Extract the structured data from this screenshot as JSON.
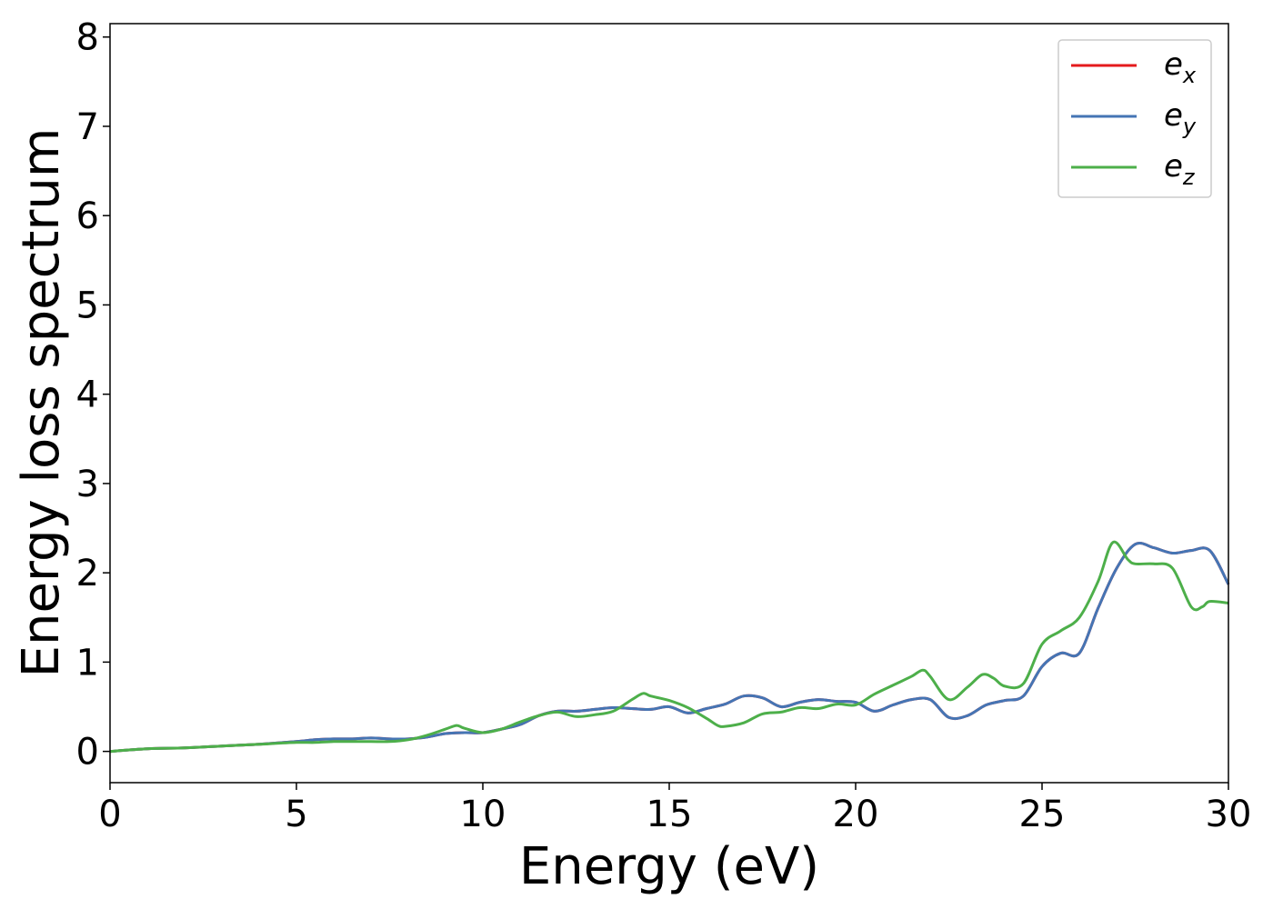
{
  "chart_data": {
    "type": "line",
    "xlabel": "Energy (eV)",
    "ylabel": "Energy loss spectrum",
    "xlim": [
      0,
      30
    ],
    "ylim": [
      -0.35,
      8.15
    ],
    "xticks": [
      "0",
      "5",
      "10",
      "15",
      "20",
      "25",
      "30"
    ],
    "yticks": [
      "0",
      "1",
      "2",
      "3",
      "4",
      "5",
      "6",
      "7",
      "8"
    ],
    "grid": false,
    "legend_position": "top-right",
    "series": [
      {
        "name": "e_x",
        "label_main": "e",
        "label_sub": "x",
        "color": "#e41a1c",
        "x": [
          0,
          1,
          2,
          3,
          4,
          5,
          5.5,
          6,
          6.5,
          7,
          7.5,
          8,
          8.5,
          9,
          9.5,
          10,
          10.5,
          11,
          11.5,
          12,
          12.5,
          13,
          13.5,
          14,
          14.5,
          15,
          15.5,
          16,
          16.5,
          17,
          17.5,
          18,
          18.5,
          19,
          19.5,
          20,
          20.5,
          21,
          21.5,
          22,
          22.5,
          23,
          23.5,
          24,
          24.5,
          25,
          25.5,
          26,
          26.5,
          27,
          27.5,
          28,
          28.5,
          29,
          29.5,
          30
        ],
        "y": [
          0,
          0.03,
          0.04,
          0.06,
          0.08,
          0.11,
          0.13,
          0.14,
          0.14,
          0.15,
          0.14,
          0.14,
          0.16,
          0.2,
          0.21,
          0.21,
          0.25,
          0.3,
          0.4,
          0.45,
          0.45,
          0.47,
          0.49,
          0.48,
          0.47,
          0.5,
          0.43,
          0.48,
          0.53,
          0.62,
          0.6,
          0.5,
          0.55,
          0.58,
          0.56,
          0.55,
          0.45,
          0.52,
          0.58,
          0.58,
          0.38,
          0.4,
          0.52,
          0.57,
          0.62,
          0.95,
          1.1,
          1.1,
          1.6,
          2.05,
          2.32,
          2.28,
          2.22,
          2.25,
          2.25,
          1.87
        ]
      },
      {
        "name": "e_y",
        "label_main": "e",
        "label_sub": "y",
        "color": "#4575b4",
        "x": [
          0,
          1,
          2,
          3,
          4,
          5,
          5.5,
          6,
          6.5,
          7,
          7.5,
          8,
          8.5,
          9,
          9.5,
          10,
          10.5,
          11,
          11.5,
          12,
          12.5,
          13,
          13.5,
          14,
          14.5,
          15,
          15.5,
          16,
          16.5,
          17,
          17.5,
          18,
          18.5,
          19,
          19.5,
          20,
          20.5,
          21,
          21.5,
          22,
          22.5,
          23,
          23.5,
          24,
          24.5,
          25,
          25.5,
          26,
          26.5,
          27,
          27.5,
          28,
          28.5,
          29,
          29.5,
          30
        ],
        "y": [
          0,
          0.03,
          0.04,
          0.06,
          0.08,
          0.11,
          0.13,
          0.14,
          0.14,
          0.15,
          0.14,
          0.14,
          0.16,
          0.2,
          0.21,
          0.21,
          0.25,
          0.3,
          0.4,
          0.45,
          0.45,
          0.47,
          0.49,
          0.48,
          0.47,
          0.5,
          0.43,
          0.48,
          0.53,
          0.62,
          0.6,
          0.5,
          0.55,
          0.58,
          0.56,
          0.55,
          0.45,
          0.52,
          0.58,
          0.58,
          0.38,
          0.4,
          0.52,
          0.57,
          0.62,
          0.95,
          1.1,
          1.1,
          1.6,
          2.05,
          2.32,
          2.28,
          2.22,
          2.25,
          2.25,
          1.87
        ]
      },
      {
        "name": "e_z",
        "label_main": "e",
        "label_sub": "z",
        "color": "#4daf4a",
        "x": [
          0,
          1,
          2,
          3,
          4,
          5,
          5.5,
          6,
          6.5,
          7,
          7.5,
          8,
          8.5,
          9,
          9.3,
          9.5,
          10,
          10.5,
          11,
          11.5,
          12,
          12.5,
          13,
          13.5,
          14,
          14.3,
          14.5,
          15,
          15.5,
          16,
          16.3,
          16.5,
          17,
          17.5,
          18,
          18.5,
          19,
          19.5,
          20,
          20.5,
          21,
          21.5,
          21.8,
          22,
          22.5,
          23,
          23.4,
          23.7,
          24,
          24.5,
          25,
          25.5,
          26,
          26.5,
          26.9,
          27.3,
          27.5,
          28,
          28.5,
          29,
          29.3,
          29.5,
          30
        ],
        "y": [
          0,
          0.03,
          0.04,
          0.06,
          0.08,
          0.1,
          0.1,
          0.11,
          0.11,
          0.11,
          0.11,
          0.13,
          0.18,
          0.25,
          0.29,
          0.26,
          0.21,
          0.25,
          0.33,
          0.4,
          0.44,
          0.39,
          0.41,
          0.45,
          0.58,
          0.65,
          0.62,
          0.57,
          0.49,
          0.37,
          0.29,
          0.28,
          0.32,
          0.42,
          0.44,
          0.49,
          0.48,
          0.53,
          0.52,
          0.64,
          0.74,
          0.84,
          0.91,
          0.84,
          0.58,
          0.72,
          0.86,
          0.82,
          0.73,
          0.76,
          1.2,
          1.35,
          1.5,
          1.9,
          2.34,
          2.15,
          2.1,
          2.1,
          2.05,
          1.62,
          1.62,
          1.68,
          1.66
        ]
      }
    ]
  }
}
